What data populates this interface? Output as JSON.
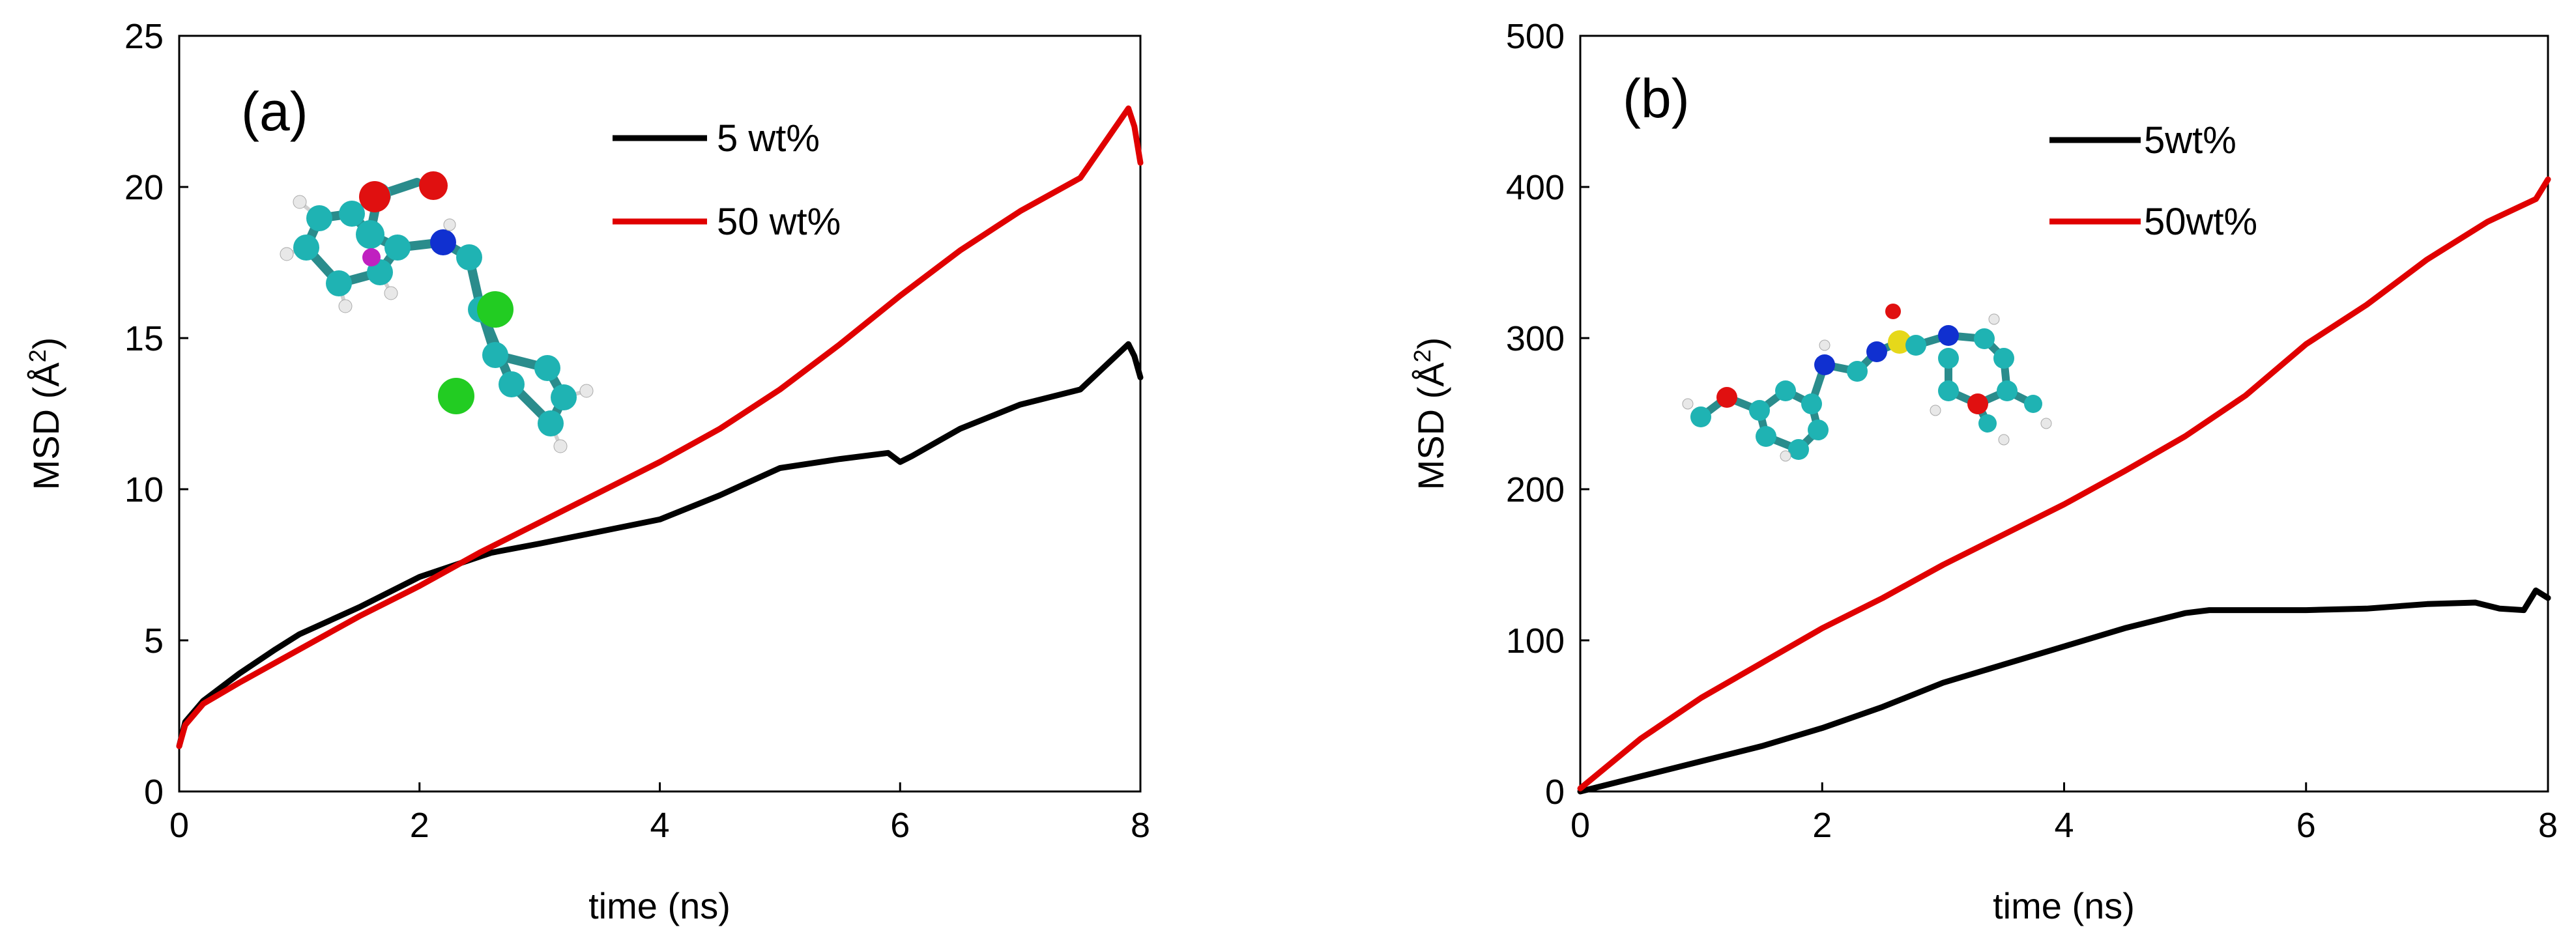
{
  "chart_data": [
    {
      "type": "line",
      "panel_label": "(a)",
      "xlabel": "time (ns)",
      "ylabel": "MSD (Å²)",
      "ylabel_parts": {
        "base": "MSD (Å",
        "sup": "2",
        "end": ")"
      },
      "xlim": [
        0,
        8
      ],
      "ylim": [
        0,
        25
      ],
      "xticks": [
        0,
        2,
        4,
        6,
        8
      ],
      "yticks": [
        0,
        5,
        10,
        15,
        20,
        25
      ],
      "legend_position": "top-right",
      "grid": false,
      "inset": "molecular structure",
      "series": [
        {
          "name": "5 wt%",
          "color": "#000000",
          "x": [
            0,
            0.05,
            0.2,
            0.5,
            0.8,
            1,
            1.5,
            2,
            2.3,
            2.6,
            3,
            3.5,
            4,
            4.5,
            5,
            5.5,
            5.9,
            6.0,
            6.1,
            6.5,
            7,
            7.5,
            7.9,
            7.95,
            8.0
          ],
          "y": [
            1.5,
            2.3,
            3.0,
            3.9,
            4.7,
            5.2,
            6.1,
            7.1,
            7.5,
            7.9,
            8.2,
            8.6,
            9.0,
            9.8,
            10.7,
            11.0,
            11.2,
            10.9,
            11.1,
            12.0,
            12.8,
            13.3,
            14.8,
            14.4,
            13.7
          ]
        },
        {
          "name": "50 wt%",
          "color": "#e00000",
          "x": [
            0,
            0.05,
            0.2,
            0.5,
            1,
            1.5,
            2,
            2.5,
            3,
            3.5,
            4,
            4.5,
            5,
            5.5,
            6,
            6.5,
            7,
            7.5,
            7.9,
            7.95,
            8.0
          ],
          "y": [
            1.5,
            2.2,
            2.9,
            3.6,
            4.7,
            5.8,
            6.8,
            7.9,
            8.9,
            9.9,
            10.9,
            12.0,
            13.3,
            14.8,
            16.4,
            17.9,
            19.2,
            20.3,
            22.6,
            22.0,
            20.8
          ]
        }
      ]
    },
    {
      "type": "line",
      "panel_label": "(b)",
      "xlabel": "time (ns)",
      "ylabel": "MSD (Å²)",
      "ylabel_parts": {
        "base": "MSD (Å",
        "sup": "2",
        "end": ")"
      },
      "xlim": [
        0,
        8
      ],
      "ylim": [
        0,
        500
      ],
      "xticks": [
        0,
        2,
        4,
        6,
        8
      ],
      "yticks": [
        0,
        100,
        200,
        300,
        400,
        500
      ],
      "legend_position": "top-right",
      "grid": false,
      "inset": "molecular structure",
      "series": [
        {
          "name": "5wt%",
          "color": "#000000",
          "x": [
            0,
            0.5,
            1,
            1.5,
            2,
            2.5,
            3,
            3.5,
            4,
            4.5,
            5,
            5.2,
            5.5,
            6,
            6.5,
            7,
            7.4,
            7.6,
            7.8,
            7.9,
            8.0
          ],
          "y": [
            0,
            10,
            20,
            30,
            42,
            56,
            72,
            84,
            96,
            108,
            118,
            120,
            120,
            120,
            121,
            124,
            125,
            121,
            120,
            133,
            128
          ]
        },
        {
          "name": "50wt%",
          "color": "#e00000",
          "x": [
            0,
            0.5,
            1,
            1.5,
            2,
            2.5,
            3,
            3.5,
            4,
            4.5,
            5,
            5.5,
            6,
            6.5,
            7,
            7.5,
            7.9,
            8.0
          ],
          "y": [
            2,
            35,
            62,
            85,
            108,
            128,
            150,
            170,
            190,
            212,
            235,
            262,
            296,
            322,
            352,
            377,
            392,
            405
          ]
        }
      ]
    }
  ]
}
